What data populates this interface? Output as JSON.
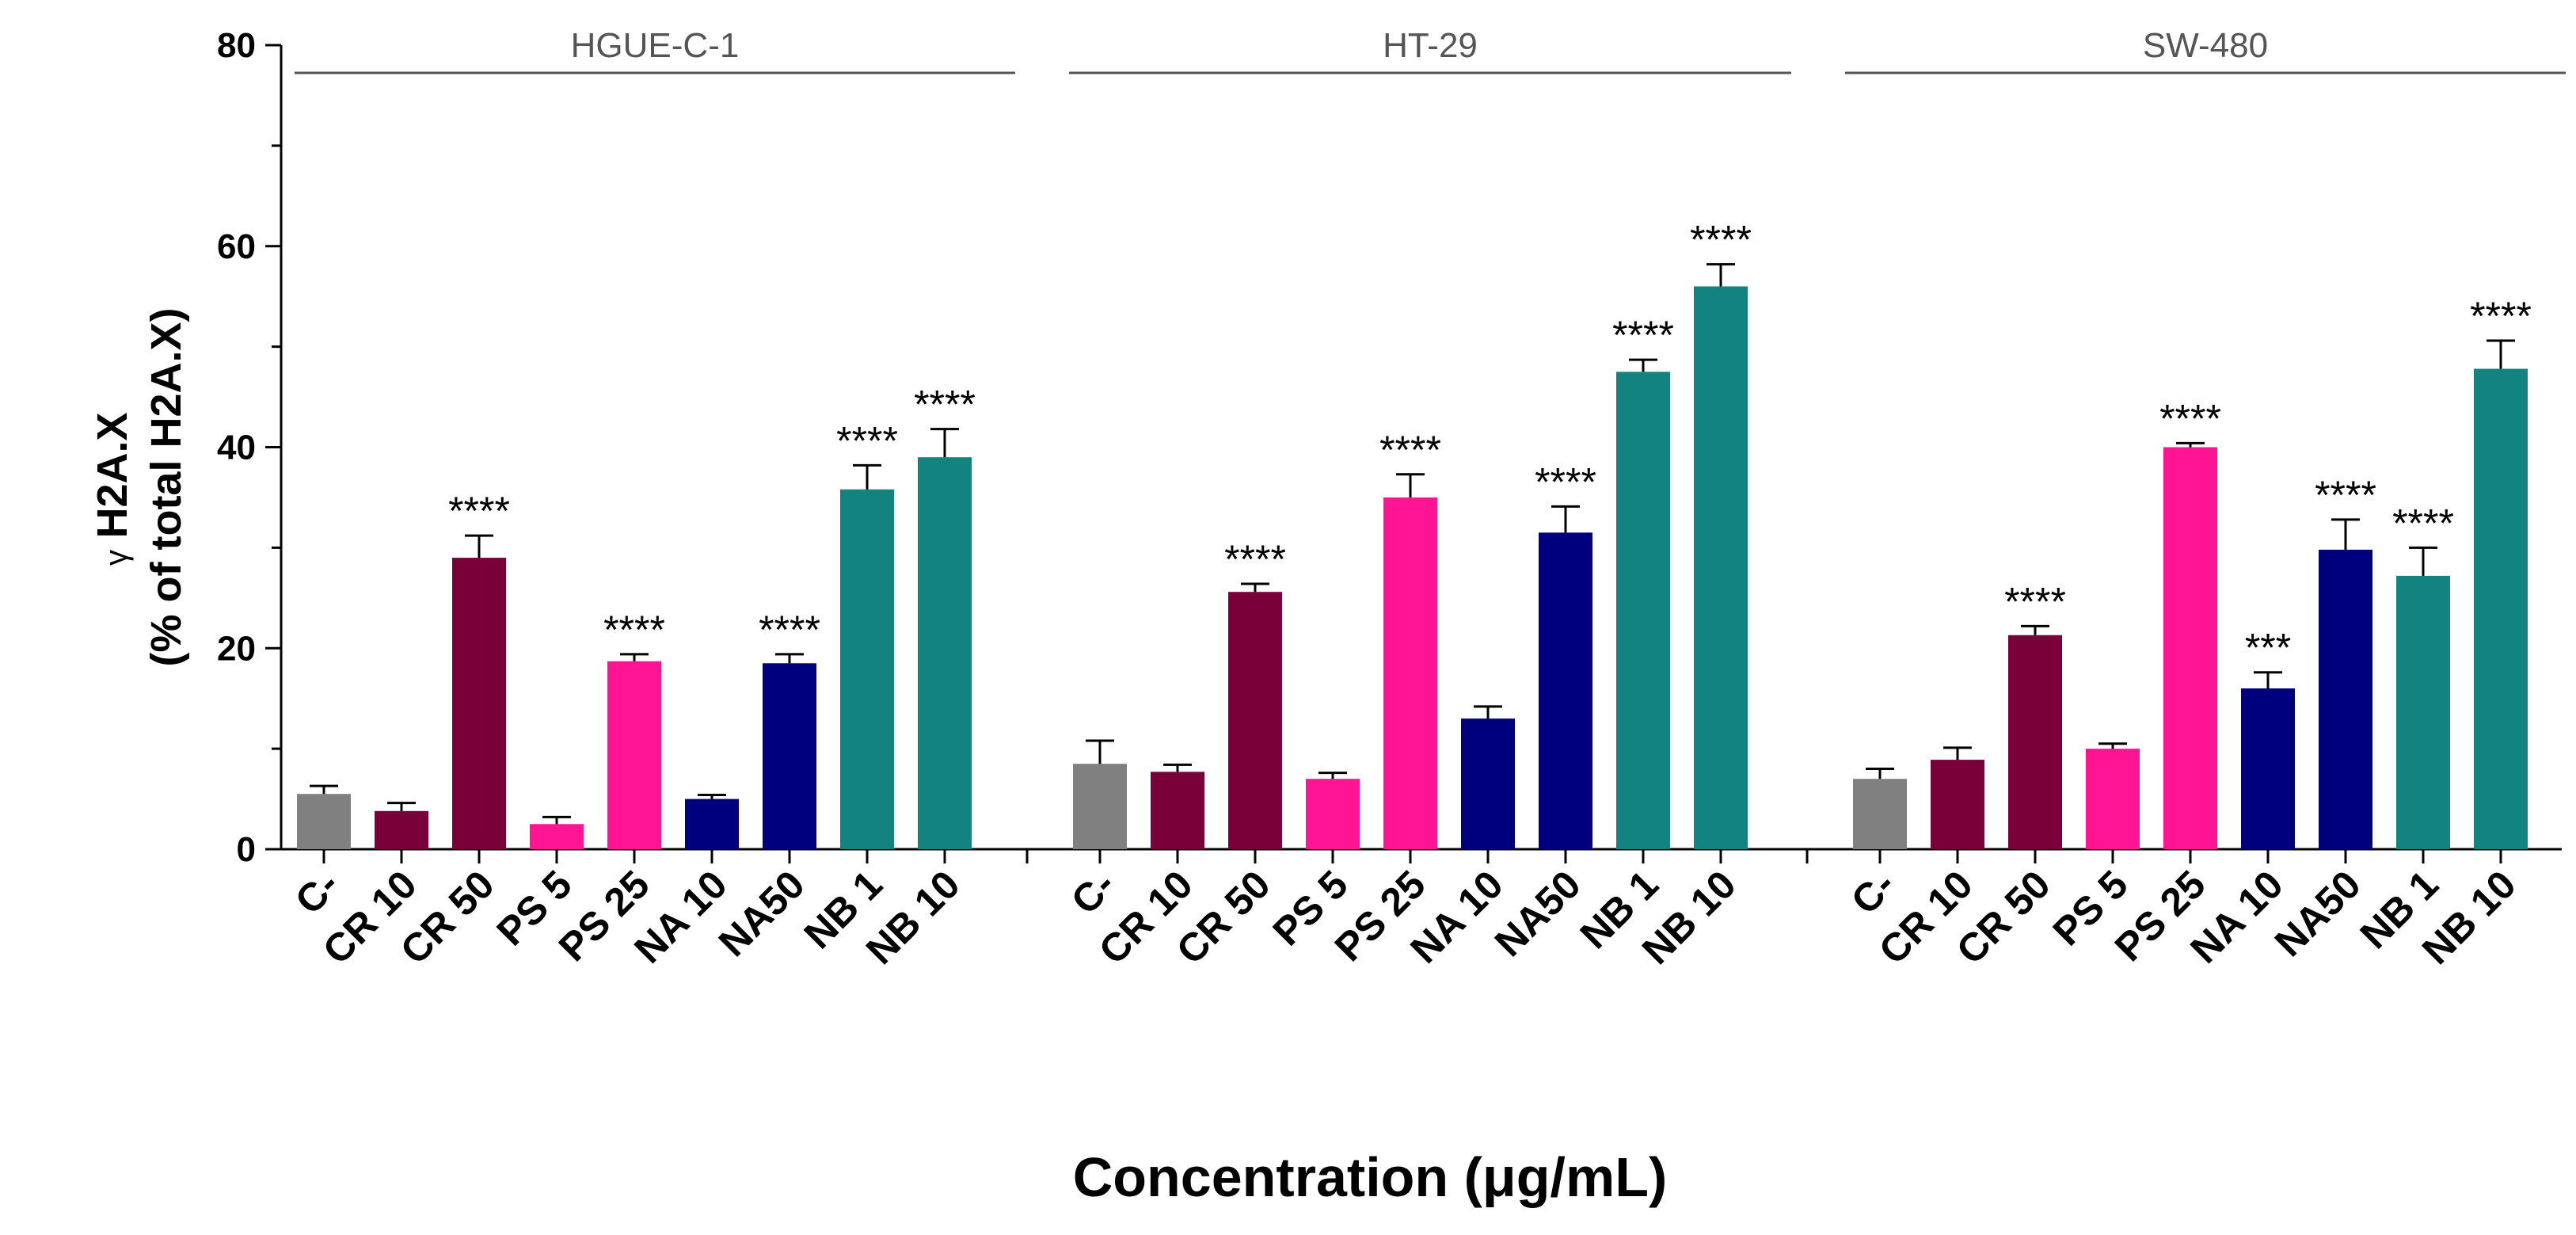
{
  "chart_data": {
    "type": "bar",
    "ylabel_prefix": "γ",
    "ylabel_line1": "H2A.X",
    "ylabel_line2": "(% of total H2A.X)",
    "xlabel": "Concentration (μg/mL)",
    "ylim": [
      0,
      80
    ],
    "yticks": [
      "0",
      "20",
      "40",
      "60",
      "80"
    ],
    "grid": false,
    "categories": [
      "C-",
      "CR 10",
      "CR 50",
      "PS 5",
      "PS 25",
      "NA 10",
      "NA50",
      "NB 1",
      "NB 10"
    ],
    "category_colors": [
      "#808080",
      "#7a0039",
      "#7a0039",
      "#ff1493",
      "#ff1493",
      "#00007f",
      "#00007f",
      "#138380",
      "#138380"
    ],
    "groups": [
      {
        "name": "HGUE-C-1",
        "values": [
          5.5,
          3.8,
          29.0,
          2.5,
          18.7,
          5.0,
          18.5,
          35.8,
          39.0
        ],
        "errors": [
          0.8,
          0.8,
          2.2,
          0.7,
          0.7,
          0.4,
          0.9,
          2.4,
          2.8
        ],
        "significance": [
          "",
          "",
          "****",
          "",
          "****",
          "",
          "****",
          "****",
          "****"
        ]
      },
      {
        "name": "HT-29",
        "values": [
          8.5,
          7.7,
          25.6,
          7.0,
          35.0,
          13.0,
          31.5,
          47.5,
          56.0
        ],
        "errors": [
          2.3,
          0.7,
          0.8,
          0.6,
          2.3,
          1.2,
          2.6,
          1.2,
          2.2
        ],
        "significance": [
          "",
          "",
          "****",
          "",
          "****",
          "",
          "****",
          "****",
          "****"
        ]
      },
      {
        "name": "SW-480",
        "values": [
          7.0,
          8.9,
          21.3,
          10.0,
          40.0,
          16.0,
          29.8,
          27.2,
          47.8
        ],
        "errors": [
          1.0,
          1.2,
          0.9,
          0.5,
          0.4,
          1.6,
          3.0,
          2.8,
          2.8
        ],
        "significance": [
          "",
          "",
          "****",
          "",
          "****",
          "***",
          "****",
          "****",
          "****"
        ]
      }
    ]
  }
}
